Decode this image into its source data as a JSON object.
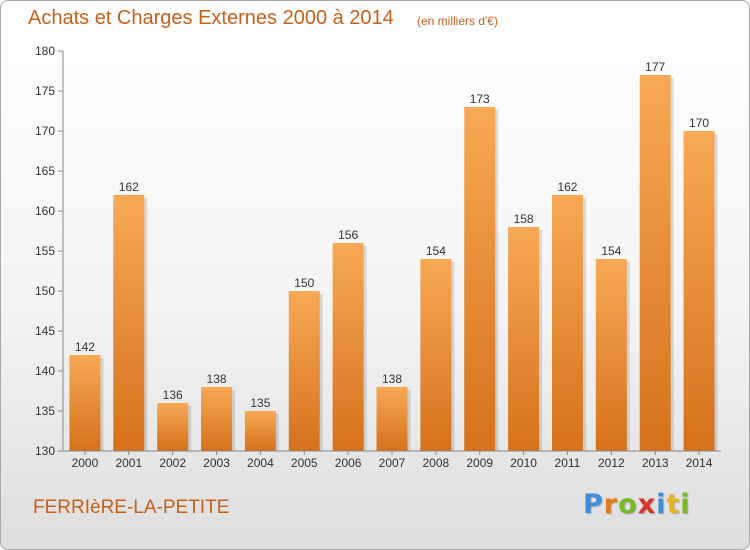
{
  "header": {
    "title": "Achats et Charges Externes 2000 à 2014",
    "subtitle": "(en milliers d'€)"
  },
  "footer": {
    "commune": "FERRIèRE-LA-PETITE",
    "logo": {
      "letters": [
        "P",
        "r",
        "o",
        "x",
        "i",
        "t",
        "i"
      ],
      "colors": [
        "#3f8fd8",
        "#e07a1a",
        "#7ab828",
        "#d9342b",
        "#3f8fd8",
        "#e9b51c",
        "#7ab828"
      ]
    }
  },
  "colors": {
    "bar_top": "#f7a955",
    "bar_bottom": "#d6711c",
    "text_accent": "#c8601a"
  },
  "chart_data": {
    "type": "bar",
    "title": "Achats et Charges Externes 2000 à 2014",
    "subtitle": "(en milliers d'€)",
    "categories": [
      "2000",
      "2001",
      "2002",
      "2003",
      "2004",
      "2005",
      "2006",
      "2007",
      "2008",
      "2009",
      "2010",
      "2011",
      "2012",
      "2013",
      "2014"
    ],
    "values": [
      142,
      162,
      136,
      138,
      135,
      150,
      156,
      138,
      154,
      173,
      158,
      162,
      154,
      177,
      170
    ],
    "ylim": [
      130,
      180
    ],
    "yticks": [
      130,
      135,
      140,
      145,
      150,
      155,
      160,
      165,
      170,
      175,
      180
    ],
    "grid": false,
    "xlabel": "",
    "ylabel": ""
  }
}
